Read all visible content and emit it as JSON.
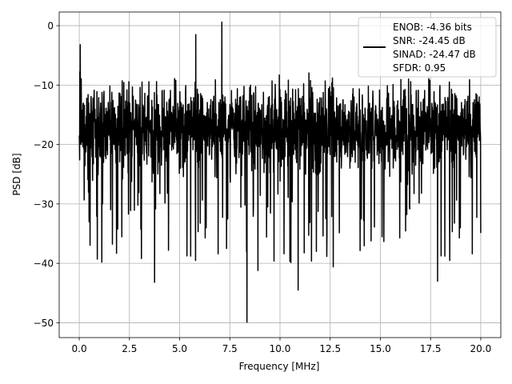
{
  "chart_data": {
    "type": "line",
    "title": "",
    "xlabel": "Frequency [MHz]",
    "ylabel": "PSD [dB]",
    "xlim": [
      -1.0,
      21.0
    ],
    "ylim": [
      -52.5,
      2.3
    ],
    "xticks": [
      0.0,
      2.5,
      5.0,
      7.5,
      10.0,
      12.5,
      15.0,
      17.5,
      20.0
    ],
    "xtick_labels": [
      "0.0",
      "2.5",
      "5.0",
      "7.5",
      "10.0",
      "12.5",
      "15.0",
      "17.5",
      "20.0"
    ],
    "yticks": [
      0,
      -10,
      -20,
      -30,
      -40,
      -50
    ],
    "ytick_labels": [
      "0",
      "−10",
      "−20",
      "−30",
      "−40",
      "−50"
    ],
    "grid": true,
    "legend_position": "top-right",
    "series": [
      {
        "name": "ENOB: -4.36 bits\nSNR: -24.45 dB\nSINAD: -24.47 dB\nSFDR: 0.95",
        "color": "#000000",
        "x_range": [
          0.0,
          20.0
        ],
        "points_count": 2048,
        "mean_db": -17.5,
        "noise_floor_db": -24.0,
        "peak_db": 0.6,
        "min_db": -49.9,
        "notable_points": [
          {
            "x": 0.05,
            "y": -3.2
          },
          {
            "x": 7.1,
            "y": 0.6
          },
          {
            "x": 5.8,
            "y": -1.5
          },
          {
            "x": 8.35,
            "y": -49.9
          },
          {
            "x": 10.9,
            "y": -44.5
          },
          {
            "x": 17.85,
            "y": -43.0
          },
          {
            "x": 3.75,
            "y": -43.2
          },
          {
            "x": 8.9,
            "y": -41.2
          },
          {
            "x": 0.9,
            "y": -39.3
          },
          {
            "x": 4.45,
            "y": -37.8
          },
          {
            "x": 12.65,
            "y": -40.6
          },
          {
            "x": 20.0,
            "y": -34.9
          }
        ]
      }
    ]
  },
  "legend": {
    "lines": [
      "ENOB: -4.36 bits",
      "SNR: -24.45 dB",
      "SINAD: -24.47 dB",
      "SFDR: 0.95"
    ]
  },
  "colors": {
    "line": "#000000",
    "grid": "#b0b0b0",
    "axes": "#000000",
    "background": "#ffffff"
  }
}
